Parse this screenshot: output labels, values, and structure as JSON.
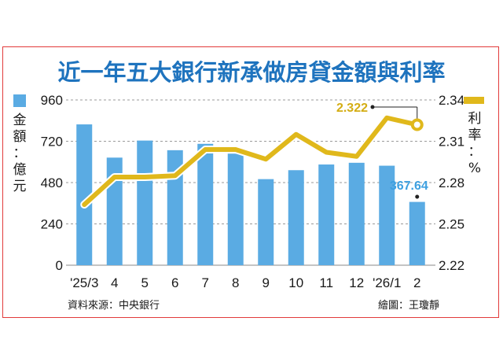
{
  "chart_data": {
    "type": "bar+line",
    "title": "近一年五大銀行新承做房貸金額與利率",
    "categories": [
      "'25/3",
      "4",
      "5",
      "6",
      "7",
      "8",
      "9",
      "10",
      "11",
      "12",
      "'26/1",
      "2"
    ],
    "series": [
      {
        "name": "金額：億元",
        "type": "bar",
        "axis": "left",
        "color": "#5aabe3",
        "values": [
          818,
          625,
          724,
          668,
          705,
          648,
          500,
          552,
          585,
          595,
          578,
          367.64
        ]
      },
      {
        "name": "利率：%",
        "type": "line",
        "axis": "right",
        "color": "#e0b81b",
        "values": [
          2.264,
          2.284,
          2.284,
          2.285,
          2.304,
          2.304,
          2.297,
          2.315,
          2.302,
          2.299,
          2.327,
          2.322
        ]
      }
    ],
    "left_axis": {
      "label": "金額：億元",
      "ylim": [
        0,
        960
      ],
      "ticks": [
        "0",
        "240",
        "480",
        "720",
        "960"
      ]
    },
    "right_axis": {
      "label": "利率：%",
      "ylim": [
        2.22,
        2.34
      ],
      "ticks": [
        "2.22",
        "2.25",
        "2.28",
        "2.31",
        "2.34"
      ]
    },
    "annotations": [
      {
        "text": "2.322",
        "series": "利率：%",
        "category": "2"
      },
      {
        "text": "367.64",
        "series": "金額：億元",
        "category": "2"
      }
    ],
    "grid": "horizontal dashed"
  },
  "source": "資料來源：中央銀行",
  "credit": "繪圖：王瓊靜"
}
